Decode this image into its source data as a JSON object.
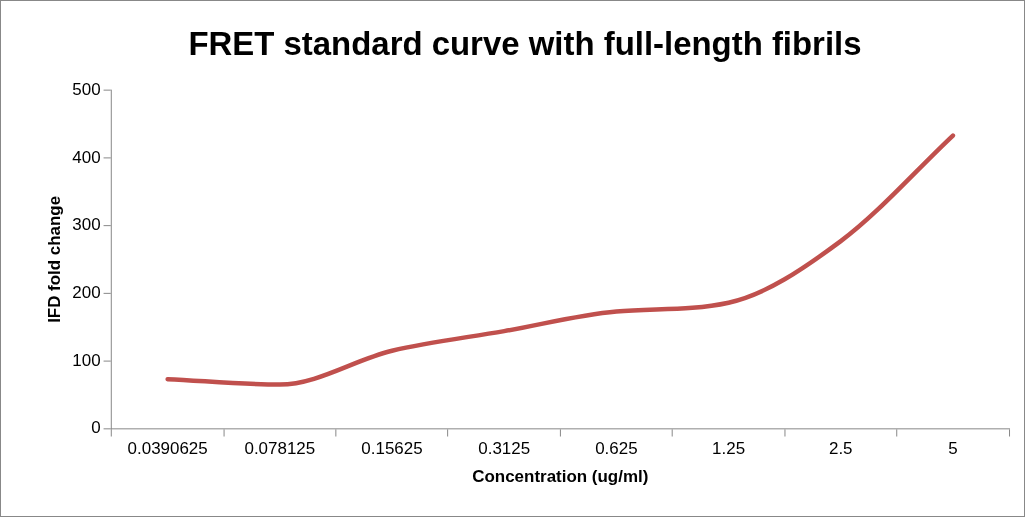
{
  "chart_data": {
    "type": "line",
    "title": "FRET standard curve with full-length fibrils",
    "xlabel": "Concentration (ug/ml)",
    "ylabel": "IFD fold change",
    "categories": [
      "0.0390625",
      "0.078125",
      "0.15625",
      "0.3125",
      "0.625",
      "1.25",
      "2.5",
      "5"
    ],
    "series": [
      {
        "color": "#c0504d",
        "values": [
          73,
          65,
          115,
          144,
          173,
          186,
          277,
          433
        ]
      }
    ],
    "ylim": [
      0,
      500
    ],
    "yticks": [
      0,
      100,
      200,
      300,
      400,
      500
    ],
    "grid": false,
    "legend": false,
    "marker": "none",
    "line_style": "solid"
  }
}
